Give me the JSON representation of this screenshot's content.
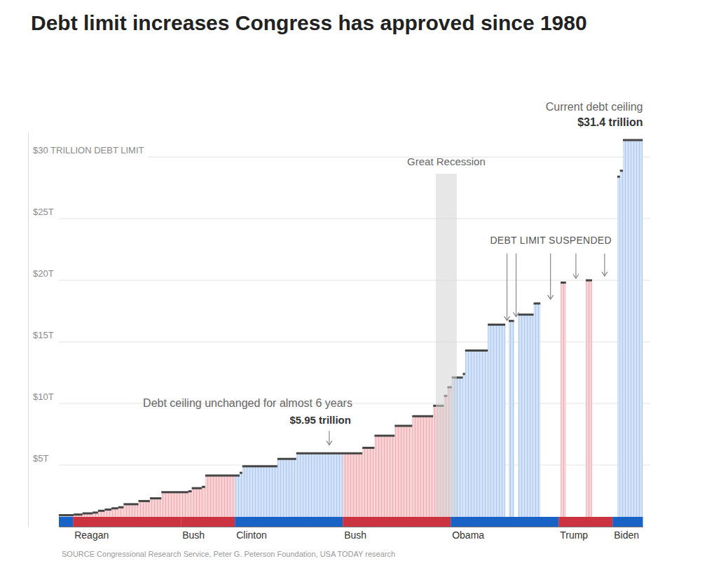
{
  "chart_data": {
    "type": "step",
    "title": "Debt limit increases Congress has approved since 1980",
    "x": [
      1980,
      1981.1,
      1981.75,
      1982.5,
      1982.9,
      1983.4,
      1983.9,
      1984.4,
      1984.8,
      1985.9,
      1986.75,
      1987.6,
      1989.6,
      1989.85,
      1990.6,
      1990.85,
      1993.4,
      1993.6,
      1996.2,
      1997.6,
      2002.5,
      2003.4,
      2004.9,
      2006.2,
      2007.75,
      2008.55,
      2008.8,
      2009.13,
      2009.95,
      2010.12,
      2011.8,
      2013.35,
      2014.05,
      2015.2,
      2017.2,
      2019.07,
      2021.4,
      2021.6,
      2021.82
    ],
    "x_end": [
      1981.1,
      1981.75,
      1982.5,
      1982.9,
      1983.4,
      1983.9,
      1984.4,
      1984.8,
      1985.9,
      1986.75,
      1987.6,
      1989.6,
      1989.85,
      1990.6,
      1990.85,
      1993.4,
      1993.6,
      1996.2,
      1997.6,
      2002.5,
      2003.4,
      2004.9,
      2006.2,
      2007.75,
      2008.55,
      2008.8,
      2009.13,
      2009.95,
      2010.12,
      2011.8,
      2013.1,
      2013.75,
      2015.2,
      2015.7,
      2017.6,
      2019.53,
      2021.6,
      2021.82,
      2023.3
    ],
    "values": [
      0.935,
      0.985,
      1.08,
      1.143,
      1.29,
      1.389,
      1.49,
      1.573,
      1.824,
      2.079,
      2.3,
      2.8,
      2.87,
      3.123,
      3.23,
      4.145,
      4.37,
      4.9,
      5.5,
      5.95,
      6.4,
      7.384,
      8.184,
      8.965,
      9.815,
      10.615,
      11.315,
      12.104,
      12.394,
      14.294,
      16.394,
      16.699,
      17.212,
      18.113,
      19.809,
      20,
      28.401,
      28.881,
      31.381
    ],
    "color": "#454545",
    "xlim": [
      1980,
      2023.3
    ],
    "ylim": [
      0,
      32
    ],
    "yticks": [
      {
        "value": 5,
        "label": "$5T"
      },
      {
        "value": 10,
        "label": "$10T"
      },
      {
        "value": 15,
        "label": "$15T"
      },
      {
        "value": 20,
        "label": "$20T"
      },
      {
        "value": 25,
        "label": "$25T"
      },
      {
        "value": 30,
        "label": "$30 TRILLION DEBT LIMIT"
      }
    ],
    "grid": true,
    "tick_labels": "y",
    "presidents": {
      "names": [
        null,
        "Reagan",
        "Bush",
        "Clinton",
        "Bush",
        "Obama",
        "Trump",
        "Biden"
      ],
      "start": [
        1980,
        1981.05,
        1989.05,
        1993.05,
        2001.05,
        2009.05,
        2017.05,
        2021.05
      ],
      "end": [
        1981.05,
        1989.05,
        1993.05,
        2001.05,
        2009.05,
        2017.05,
        2021.05,
        2023.3
      ],
      "colors": [
        "#1a63c6",
        "#cc3340",
        "#cc3340",
        "#1a63c6",
        "#cc3340",
        "#1a63c6",
        "#cc3340",
        "#1a63c6"
      ]
    },
    "recession": {
      "text": "Great Recession",
      "start": 2007.95,
      "end": 2009.5
    },
    "suspended": {
      "text": "DEBT LIMIT SUSPENDED"
    },
    "current_ceiling": {
      "text": "Current debt ceiling",
      "label": "$31.4 trillion",
      "value": 31.381
    },
    "unchanged": {
      "text": "Debt ceiling unchanged for almost 6 years",
      "label": "$5.95 trillion",
      "value": 5.95
    },
    "source": "SOURCE Congressional Research Service, Peter G. Peterson Foundation, USA TODAY research"
  }
}
